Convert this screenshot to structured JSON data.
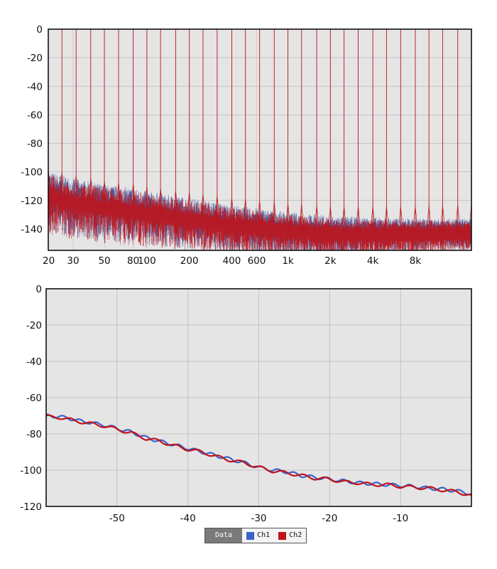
{
  "chart_data": [
    {
      "type": "line",
      "title": "",
      "xlabel": "",
      "ylabel": "",
      "x_scale": "log",
      "xlim": [
        20,
        20000
      ],
      "ylim": [
        -155,
        0
      ],
      "x_ticks": [
        {
          "value": 20,
          "label": "20"
        },
        {
          "value": 30,
          "label": "30"
        },
        {
          "value": 50,
          "label": "50"
        },
        {
          "value": 80,
          "label": "80"
        },
        {
          "value": 100,
          "label": "100"
        },
        {
          "value": 200,
          "label": "200"
        },
        {
          "value": 400,
          "label": "400"
        },
        {
          "value": 600,
          "label": "600"
        },
        {
          "value": 1000,
          "label": "1k"
        },
        {
          "value": 2000,
          "label": "2k"
        },
        {
          "value": 4000,
          "label": "4k"
        },
        {
          "value": 8000,
          "label": "8k"
        }
      ],
      "y_ticks": [
        0,
        -20,
        -40,
        -60,
        -80,
        -100,
        -120,
        -140
      ],
      "grid": true,
      "tones_hz": [
        20,
        25,
        31.5,
        40,
        50,
        63,
        80,
        100,
        125,
        160,
        200,
        250,
        315,
        400,
        500,
        630,
        800,
        1000,
        1250,
        1600,
        2000,
        2500,
        3150,
        4000,
        5000,
        6300,
        8000,
        10000,
        12500,
        16000,
        20000
      ],
      "tone_level_db": 0,
      "noise_floor_db": [
        {
          "x": 20,
          "y": -118
        },
        {
          "x": 30,
          "y": -122
        },
        {
          "x": 50,
          "y": -126
        },
        {
          "x": 80,
          "y": -128
        },
        {
          "x": 100,
          "y": -130
        },
        {
          "x": 200,
          "y": -134
        },
        {
          "x": 400,
          "y": -138
        },
        {
          "x": 1000,
          "y": -142
        },
        {
          "x": 2000,
          "y": -144
        },
        {
          "x": 4000,
          "y": -144
        },
        {
          "x": 8000,
          "y": -144
        },
        {
          "x": 20000,
          "y": -143
        }
      ],
      "series": [
        {
          "name": "Ch1",
          "color": "#2b4a9c"
        },
        {
          "name": "Ch2",
          "color": "#c0141a"
        }
      ]
    },
    {
      "type": "line",
      "title": "",
      "xlabel": "",
      "ylabel": "",
      "xlim": [
        -60,
        0
      ],
      "ylim": [
        -120,
        0
      ],
      "x_ticks": [
        -50,
        -40,
        -30,
        -20,
        -10
      ],
      "y_ticks": [
        0,
        -20,
        -40,
        -60,
        -80,
        -100,
        -120
      ],
      "grid": true,
      "series": [
        {
          "name": "Ch1",
          "color": "#3a63c8",
          "points": [
            [
              -60,
              -70
            ],
            [
              -58,
              -70.5
            ],
            [
              -55,
              -73
            ],
            [
              -52,
              -75
            ],
            [
              -50,
              -77
            ],
            [
              -48,
              -79
            ],
            [
              -46,
              -82
            ],
            [
              -44,
              -84
            ],
            [
              -42,
              -86
            ],
            [
              -40,
              -88
            ],
            [
              -38,
              -90
            ],
            [
              -36,
              -92
            ],
            [
              -34,
              -94
            ],
            [
              -32,
              -96
            ],
            [
              -30,
              -98.5
            ],
            [
              -28,
              -100
            ],
            [
              -26,
              -101
            ],
            [
              -24,
              -103
            ],
            [
              -22,
              -104
            ],
            [
              -20,
              -105
            ],
            [
              -18,
              -106
            ],
            [
              -16,
              -107
            ],
            [
              -14,
              -107.5
            ],
            [
              -12,
              -108
            ],
            [
              -10,
              -108.5
            ],
            [
              -8,
              -109
            ],
            [
              -6,
              -110
            ],
            [
              -4,
              -110.5
            ],
            [
              -2,
              -111.5
            ],
            [
              0,
              -113
            ]
          ]
        },
        {
          "name": "Ch2",
          "color": "#c0141a",
          "points": [
            [
              -60,
              -70.5
            ],
            [
              -58,
              -71
            ],
            [
              -55,
              -73.5
            ],
            [
              -52,
              -75.5
            ],
            [
              -50,
              -77.5
            ],
            [
              -48,
              -79.5
            ],
            [
              -46,
              -82.5
            ],
            [
              -44,
              -84
            ],
            [
              -42,
              -86.5
            ],
            [
              -40,
              -88.5
            ],
            [
              -38,
              -90
            ],
            [
              -36,
              -92.5
            ],
            [
              -34,
              -94.5
            ],
            [
              -32,
              -96
            ],
            [
              -30,
              -98.5
            ],
            [
              -28,
              -100.5
            ],
            [
              -26,
              -101.5
            ],
            [
              -24,
              -103
            ],
            [
              -22,
              -104.5
            ],
            [
              -20,
              -105
            ],
            [
              -18,
              -106.5
            ],
            [
              -16,
              -107
            ],
            [
              -14,
              -108
            ],
            [
              -12,
              -108
            ],
            [
              -10,
              -109
            ],
            [
              -8,
              -109.5
            ],
            [
              -6,
              -110
            ],
            [
              -4,
              -111
            ],
            [
              -2,
              -112
            ],
            [
              0,
              -114
            ]
          ]
        }
      ]
    }
  ],
  "legend": {
    "title": "Data",
    "items": [
      {
        "label": "Ch1",
        "color": "#3a63c8"
      },
      {
        "label": "Ch2",
        "color": "#c0141a"
      }
    ]
  }
}
